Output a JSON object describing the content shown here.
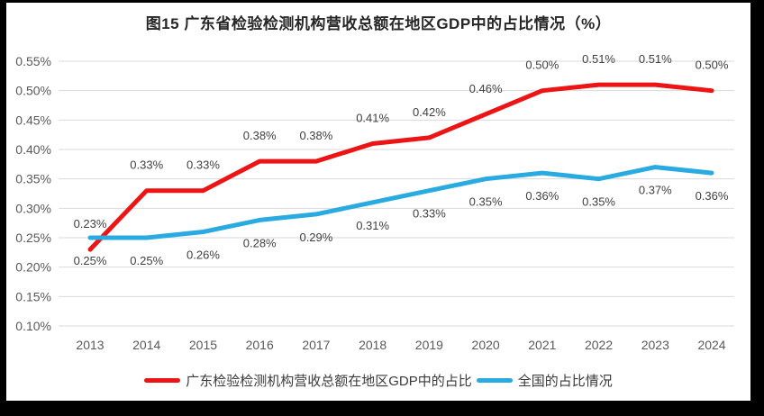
{
  "title": "图15  广东省检验检测机构营收总额在地区GDP中的占比情况（%）",
  "colors": {
    "frame_background": "#000000",
    "card_background": "#ffffff",
    "grid": "#d9d9d9",
    "axis_text": "#595959",
    "data_label_text": "#404040",
    "title_text": "#262626",
    "series_guangdong": "#ec1414",
    "series_national": "#29abe2"
  },
  "chart_data": {
    "type": "line",
    "title": "图15  广东省检验检测机构营收总额在地区GDP中的占比情况（%）",
    "xlabel": "",
    "ylabel": "",
    "categories": [
      "2013",
      "2014",
      "2015",
      "2016",
      "2017",
      "2018",
      "2019",
      "2020",
      "2021",
      "2022",
      "2023",
      "2024"
    ],
    "ylim": [
      0.1,
      0.55
    ],
    "ytick_step": 0.05,
    "yticks": [
      0.55,
      0.5,
      0.45,
      0.4,
      0.35,
      0.3,
      0.25,
      0.2,
      0.15,
      0.1
    ],
    "ytick_labels": [
      "0.55%",
      "0.50%",
      "0.45%",
      "0.40%",
      "0.35%",
      "0.30%",
      "0.25%",
      "0.20%",
      "0.15%",
      "0.10%"
    ],
    "grid": true,
    "legend_position": "bottom",
    "series": [
      {
        "name": "广东检验检测机构营收总额在地区GDP中的占比",
        "color": "#ec1414",
        "label_position": "above",
        "values": [
          0.23,
          0.33,
          0.33,
          0.38,
          0.38,
          0.41,
          0.42,
          0.46,
          0.5,
          0.51,
          0.51,
          0.5
        ],
        "labels": [
          "0.23%",
          "0.33%",
          "0.33%",
          "0.38%",
          "0.38%",
          "0.41%",
          "0.42%",
          "0.46%",
          "0.50%",
          "0.51%",
          "0.51%",
          "0.50%"
        ]
      },
      {
        "name": "全国的占比情况",
        "color": "#29abe2",
        "label_position": "below",
        "values": [
          0.25,
          0.25,
          0.26,
          0.28,
          0.29,
          0.31,
          0.33,
          0.35,
          0.36,
          0.35,
          0.37,
          0.36
        ],
        "labels": [
          "0.25%",
          "0.25%",
          "0.26%",
          "0.28%",
          "0.29%",
          "0.31%",
          "0.33%",
          "0.35%",
          "0.36%",
          "0.35%",
          "0.37%",
          "0.36%"
        ]
      }
    ]
  }
}
